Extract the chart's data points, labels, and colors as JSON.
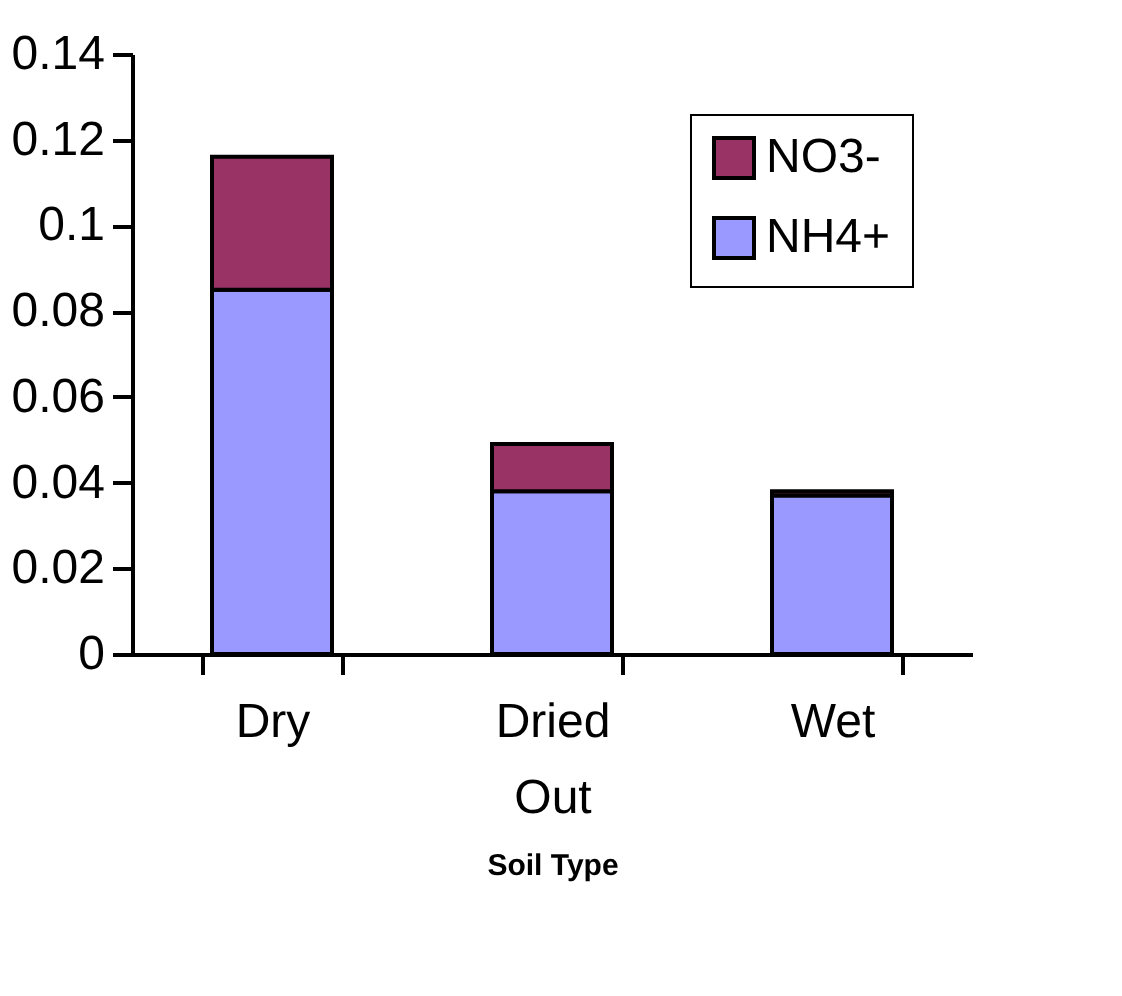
{
  "chart_data": {
    "type": "bar",
    "stacked": true,
    "xlabel": "Soil Type",
    "categories": [
      "Dry",
      "Dried Out",
      "Wet"
    ],
    "series": [
      {
        "name": "NH4+",
        "color": "#9999ff",
        "values": [
          0.085,
          0.038,
          0.037
        ]
      },
      {
        "name": "NO3-",
        "color": "#993366",
        "values": [
          0.031,
          0.011,
          0.001
        ]
      }
    ],
    "ylim": [
      0,
      0.14
    ],
    "yticks": [
      0,
      0.02,
      0.04,
      0.06,
      0.08,
      0.1,
      0.12,
      0.14
    ],
    "grid": false,
    "legend": "top right"
  }
}
